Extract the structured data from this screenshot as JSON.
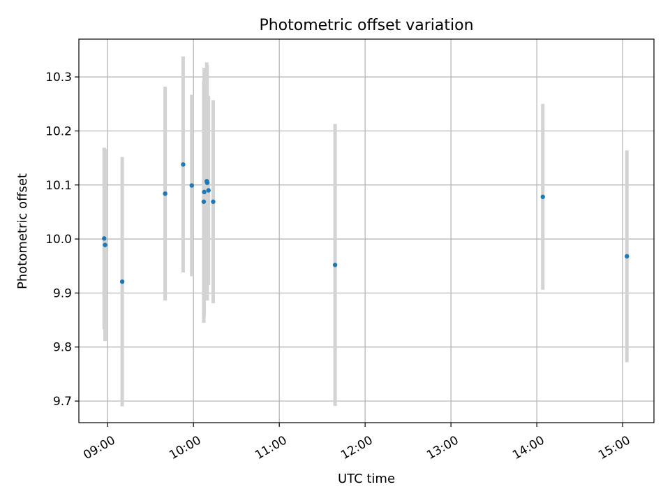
{
  "chart_data": {
    "type": "scatter",
    "title": "Photometric offset variation",
    "xlabel": "UTC time",
    "ylabel": "Photometric offset",
    "x_unit": "hours (UTC)",
    "xlim": [
      8.665,
      15.365
    ],
    "ylim": [
      9.66,
      10.37
    ],
    "grid": true,
    "x_ticks": [
      {
        "value": 9,
        "label": "09:00"
      },
      {
        "value": 10,
        "label": "10:00"
      },
      {
        "value": 11,
        "label": "11:00"
      },
      {
        "value": 12,
        "label": "12:00"
      },
      {
        "value": 13,
        "label": "13:00"
      },
      {
        "value": 14,
        "label": "14:00"
      },
      {
        "value": 15,
        "label": "15:00"
      }
    ],
    "y_ticks": [
      {
        "value": 9.7,
        "label": "9.7"
      },
      {
        "value": 9.8,
        "label": "9.8"
      },
      {
        "value": 9.9,
        "label": "9.9"
      },
      {
        "value": 10.0,
        "label": "10.0"
      },
      {
        "value": 10.1,
        "label": "10.1"
      },
      {
        "value": 10.2,
        "label": "10.2"
      },
      {
        "value": 10.3,
        "label": "10.3"
      }
    ],
    "point_color": "#1f77b4",
    "errorbar_color": "#d3d3d3",
    "points": [
      {
        "time": "08:57",
        "x": 8.96,
        "y": 10.001,
        "err": 0.168
      },
      {
        "time": "08:58",
        "x": 8.97,
        "y": 9.989,
        "err": 0.178
      },
      {
        "time": "09:10",
        "x": 9.17,
        "y": 9.921,
        "err": 0.231
      },
      {
        "time": "09:40",
        "x": 9.67,
        "y": 10.084,
        "err": 0.198
      },
      {
        "time": "09:53",
        "x": 9.88,
        "y": 10.138,
        "err": 0.2
      },
      {
        "time": "09:59",
        "x": 9.98,
        "y": 10.099,
        "err": 0.168
      },
      {
        "time": "10:07",
        "x": 10.12,
        "y": 10.069,
        "err": 0.224
      },
      {
        "time": "10:07",
        "x": 10.125,
        "y": 10.087,
        "err": 0.23
      },
      {
        "time": "10:09",
        "x": 10.155,
        "y": 10.107,
        "err": 0.22
      },
      {
        "time": "10:09",
        "x": 10.16,
        "y": 10.104,
        "err": 0.218
      },
      {
        "time": "10:10",
        "x": 10.175,
        "y": 10.09,
        "err": 0.175
      },
      {
        "time": "10:14",
        "x": 10.23,
        "y": 10.069,
        "err": 0.188
      },
      {
        "time": "11:39",
        "x": 11.65,
        "y": 9.952,
        "err": 0.261
      },
      {
        "time": "14:04",
        "x": 14.07,
        "y": 10.078,
        "err": 0.172
      },
      {
        "time": "15:03",
        "x": 15.05,
        "y": 9.968,
        "err": 0.196
      }
    ]
  }
}
